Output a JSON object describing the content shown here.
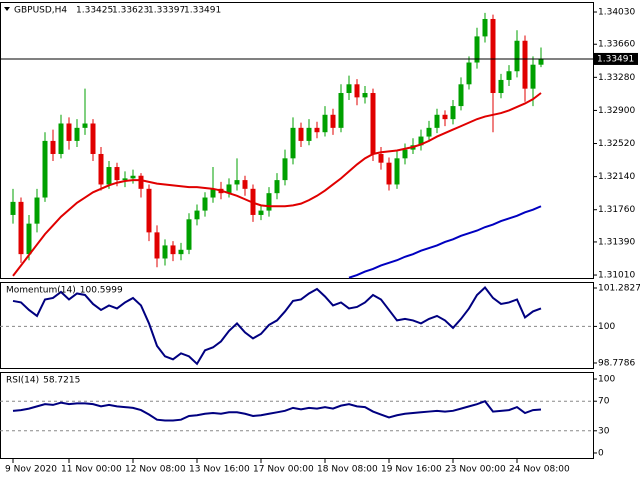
{
  "chart_data": {
    "type": "candlestick",
    "symbol": "GBPUSD,H4",
    "up_color": "#00a000",
    "down_color": "#e00000",
    "ohlc": [
      [
        1.317,
        1.32,
        1.316,
        1.3185
      ],
      [
        1.3185,
        1.319,
        1.3115,
        1.3125
      ],
      [
        1.3125,
        1.317,
        1.3118,
        1.316
      ],
      [
        1.316,
        1.32,
        1.315,
        1.319
      ],
      [
        1.319,
        1.3265,
        1.3185,
        1.3255
      ],
      [
        1.3255,
        1.3268,
        1.3232,
        1.324
      ],
      [
        1.324,
        1.3285,
        1.3235,
        1.3275
      ],
      [
        1.3275,
        1.3282,
        1.3245,
        1.3255
      ],
      [
        1.3255,
        1.328,
        1.3248,
        1.327
      ],
      [
        1.327,
        1.3315,
        1.3262,
        1.3275
      ],
      [
        1.3275,
        1.328,
        1.3232,
        1.324
      ],
      [
        1.324,
        1.3248,
        1.3198,
        1.3205
      ],
      [
        1.3205,
        1.3232,
        1.32,
        1.3225
      ],
      [
        1.3225,
        1.323,
        1.3203,
        1.321
      ],
      [
        1.321,
        1.322,
        1.3202,
        1.3212
      ],
      [
        1.3212,
        1.3222,
        1.3206,
        1.3215
      ],
      [
        1.3215,
        1.3218,
        1.319,
        1.32
      ],
      [
        1.32,
        1.3205,
        1.314,
        1.315
      ],
      [
        1.315,
        1.3158,
        1.311,
        1.312
      ],
      [
        1.312,
        1.3142,
        1.3112,
        1.3135
      ],
      [
        1.3135,
        1.314,
        1.3117,
        1.3125
      ],
      [
        1.3125,
        1.3138,
        1.3118,
        1.313
      ],
      [
        1.313,
        1.3172,
        1.3125,
        1.3165
      ],
      [
        1.3165,
        1.3182,
        1.3158,
        1.3175
      ],
      [
        1.3175,
        1.3196,
        1.3168,
        1.319
      ],
      [
        1.319,
        1.3225,
        1.3184,
        1.32
      ],
      [
        1.32,
        1.3208,
        1.3188,
        1.3195
      ],
      [
        1.3195,
        1.3212,
        1.319,
        1.3205
      ],
      [
        1.3205,
        1.3235,
        1.3198,
        1.321
      ],
      [
        1.321,
        1.3215,
        1.3192,
        1.32
      ],
      [
        1.32,
        1.3205,
        1.3162,
        1.317
      ],
      [
        1.317,
        1.3182,
        1.3164,
        1.3175
      ],
      [
        1.3175,
        1.3202,
        1.3168,
        1.3195
      ],
      [
        1.3195,
        1.3218,
        1.3188,
        1.321
      ],
      [
        1.321,
        1.3245,
        1.3204,
        1.3235
      ],
      [
        1.3235,
        1.3282,
        1.3228,
        1.327
      ],
      [
        1.327,
        1.3276,
        1.3248,
        1.3255
      ],
      [
        1.3255,
        1.328,
        1.325,
        1.327
      ],
      [
        1.327,
        1.3277,
        1.3258,
        1.3265
      ],
      [
        1.3265,
        1.3295,
        1.326,
        1.3285
      ],
      [
        1.3285,
        1.3292,
        1.3262,
        1.327
      ],
      [
        1.327,
        1.332,
        1.3265,
        1.331
      ],
      [
        1.331,
        1.333,
        1.3302,
        1.332
      ],
      [
        1.332,
        1.3326,
        1.3296,
        1.3305
      ],
      [
        1.3305,
        1.3318,
        1.3298,
        1.331
      ],
      [
        1.331,
        1.3315,
        1.3232,
        1.324
      ],
      [
        1.324,
        1.3248,
        1.3222,
        1.323
      ],
      [
        1.323,
        1.3236,
        1.3198,
        1.3205
      ],
      [
        1.3205,
        1.3243,
        1.32,
        1.3235
      ],
      [
        1.3235,
        1.3252,
        1.3228,
        1.3245
      ],
      [
        1.3245,
        1.3258,
        1.324,
        1.325
      ],
      [
        1.325,
        1.3268,
        1.3244,
        1.326
      ],
      [
        1.326,
        1.3278,
        1.3254,
        1.327
      ],
      [
        1.327,
        1.3292,
        1.3264,
        1.3285
      ],
      [
        1.3285,
        1.329,
        1.3272,
        1.328
      ],
      [
        1.328,
        1.3302,
        1.3274,
        1.3295
      ],
      [
        1.3295,
        1.3328,
        1.329,
        1.332
      ],
      [
        1.332,
        1.3352,
        1.3314,
        1.3345
      ],
      [
        1.3345,
        1.3385,
        1.3338,
        1.3375
      ],
      [
        1.3375,
        1.3402,
        1.3368,
        1.3395
      ],
      [
        1.3395,
        1.34,
        1.3265,
        1.331
      ],
      [
        1.331,
        1.3332,
        1.3304,
        1.3325
      ],
      [
        1.3325,
        1.3342,
        1.3318,
        1.3335
      ],
      [
        1.3335,
        1.3382,
        1.3328,
        1.337
      ],
      [
        1.337,
        1.3376,
        1.33,
        1.3315
      ],
      [
        1.3315,
        1.3352,
        1.3295,
        1.33425
      ],
      [
        1.33425,
        1.33623,
        1.33397,
        1.33491
      ]
    ],
    "moving_averages": [
      {
        "color": "#e00000",
        "values": [
          1.31,
          1.3112,
          1.3124,
          1.3136,
          1.3148,
          1.3158,
          1.3168,
          1.3176,
          1.3184,
          1.319,
          1.3196,
          1.32,
          1.3204,
          1.3207,
          1.3209,
          1.321,
          1.321,
          1.3208,
          1.3206,
          1.3205,
          1.3204,
          1.3203,
          1.3202,
          1.3202,
          1.3201,
          1.32,
          1.3198,
          1.3195,
          1.3192,
          1.3188,
          1.3184,
          1.3181,
          1.318,
          1.318,
          1.318,
          1.3181,
          1.3183,
          1.3187,
          1.3192,
          1.3198,
          1.3205,
          1.3212,
          1.322,
          1.3228,
          1.3235,
          1.324,
          1.3242,
          1.3243,
          1.3244,
          1.3246,
          1.3248,
          1.3251,
          1.3255,
          1.326,
          1.3264,
          1.3268,
          1.3272,
          1.3276,
          1.328,
          1.3283,
          1.3285,
          1.3287,
          1.329,
          1.3294,
          1.3298,
          1.3303,
          1.331
        ]
      },
      {
        "color": "#0000c0",
        "values": [
          null,
          null,
          null,
          null,
          null,
          null,
          null,
          null,
          null,
          null,
          null,
          null,
          null,
          null,
          null,
          null,
          null,
          null,
          null,
          null,
          null,
          null,
          null,
          null,
          null,
          null,
          null,
          null,
          null,
          null,
          null,
          null,
          null,
          null,
          null,
          null,
          null,
          null,
          null,
          null,
          null,
          null,
          1.3098,
          1.3101,
          1.3105,
          1.3108,
          1.3112,
          1.3115,
          1.3118,
          1.3122,
          1.3125,
          1.3129,
          1.3132,
          1.3135,
          1.3139,
          1.3142,
          1.3146,
          1.3149,
          1.3152,
          1.3156,
          1.3159,
          1.3163,
          1.3166,
          1.3169,
          1.3173,
          1.3176,
          1.318
        ]
      }
    ],
    "xlim": [
      -1.625,
      72.5
    ],
    "xticks": [
      {
        "value": 0,
        "label": "9 Nov 2020"
      },
      {
        "value": 7,
        "label": "11 Nov 00:00"
      },
      {
        "value": 15,
        "label": "12 Nov 08:00"
      },
      {
        "value": 23,
        "label": "13 Nov 16:00"
      },
      {
        "value": 31,
        "label": "17 Nov 00:00"
      },
      {
        "value": 39,
        "label": "18 Nov 08:00"
      },
      {
        "value": 47,
        "label": "19 Nov 16:00"
      },
      {
        "value": 55,
        "label": "23 Nov 00:00"
      },
      {
        "value": 63,
        "label": "24 Nov 08:00"
      }
    ],
    "ylim": [
      1.30976,
      1.34145
    ],
    "yticks": [
      {
        "value": 1.3403,
        "label": "1.34030"
      },
      {
        "value": 1.3366,
        "label": "1.33660"
      },
      {
        "value": 1.3328,
        "label": "1.33280"
      },
      {
        "value": 1.329,
        "label": "1.32900"
      },
      {
        "value": 1.3252,
        "label": "1.32520"
      },
      {
        "value": 1.3214,
        "label": "1.32140"
      },
      {
        "value": 1.3176,
        "label": "1.31760"
      },
      {
        "value": 1.3139,
        "label": "1.31390"
      },
      {
        "value": 1.3101,
        "label": "1.31010"
      }
    ],
    "indicators": [
      {
        "type": "line",
        "name": "Momentum(14)",
        "color": "#000080",
        "ylim": [
          98.611,
          101.483
        ],
        "yticks": [
          101.2827,
          100,
          98.7786
        ],
        "levels": [
          100
        ],
        "values": [
          100.85,
          100.8,
          100.55,
          100.35,
          100.9,
          100.95,
          101.15,
          100.9,
          101.1,
          101.05,
          100.75,
          100.55,
          100.7,
          100.6,
          100.8,
          100.95,
          100.7,
          100.1,
          99.35,
          99.0,
          98.9,
          99.1,
          99.0,
          98.75,
          99.2,
          99.3,
          99.5,
          99.85,
          100.1,
          99.8,
          99.6,
          99.75,
          100.05,
          100.2,
          100.5,
          100.85,
          100.9,
          101.1,
          101.25,
          101.0,
          100.7,
          100.8,
          100.6,
          100.65,
          100.8,
          101.05,
          100.9,
          100.55,
          100.2,
          100.25,
          100.2,
          100.1,
          100.25,
          100.35,
          100.2,
          99.95,
          100.25,
          100.6,
          101.05,
          101.3,
          100.95,
          100.75,
          100.8,
          100.9,
          100.3,
          100.5,
          100.5999
        ]
      },
      {
        "type": "line",
        "name": "RSI(14)",
        "color": "#000080",
        "ylim": [
          -6.8,
          109.5
        ],
        "yticks": [
          100,
          70,
          30,
          0
        ],
        "levels": [
          70,
          30
        ],
        "values": [
          57,
          58,
          60,
          63,
          66,
          65,
          68,
          66,
          67,
          67,
          66,
          63,
          65,
          63,
          62,
          61,
          58,
          52,
          45,
          44,
          44,
          45,
          50,
          51,
          53,
          54,
          53,
          55,
          55,
          53,
          50,
          51,
          53,
          55,
          57,
          61,
          59,
          61,
          60,
          62,
          60,
          64,
          66,
          63,
          62,
          56,
          52,
          48,
          51,
          53,
          54,
          55,
          56,
          57,
          56,
          57,
          60,
          63,
          66,
          70,
          56,
          57,
          58,
          62,
          54,
          58,
          58.7215
        ]
      }
    ]
  }
}
